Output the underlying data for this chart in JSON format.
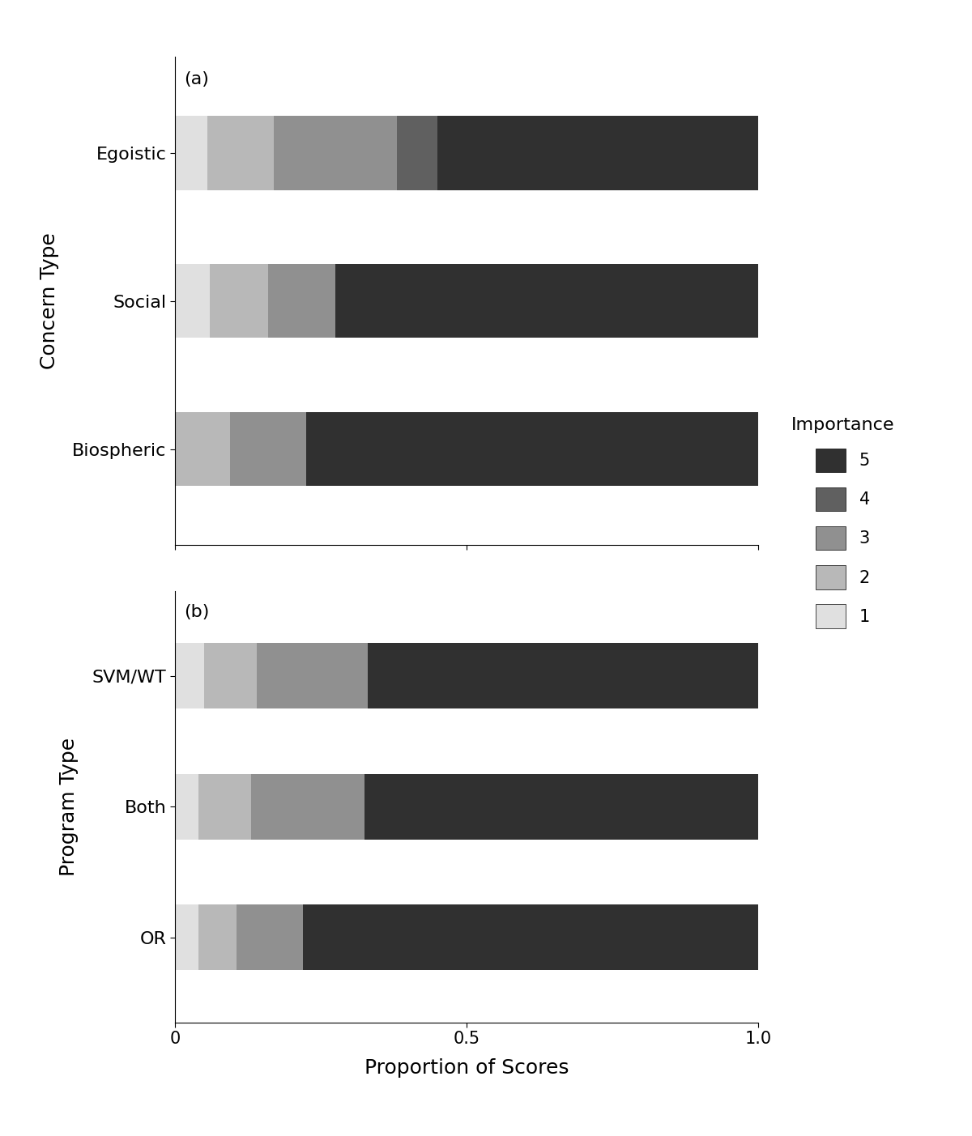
{
  "panel_a": {
    "label": "(a)",
    "ylabel": "Concern Type",
    "categories": [
      "Biospheric",
      "Social",
      "Egoistic"
    ],
    "data": {
      "Egoistic": [
        0.055,
        0.115,
        0.21,
        0.07,
        0.55
      ],
      "Social": [
        0.06,
        0.1,
        0.115,
        0.0,
        0.725
      ],
      "Biospheric": [
        0.0,
        0.095,
        0.13,
        0.0,
        0.775
      ]
    }
  },
  "panel_b": {
    "label": "(b)",
    "ylabel": "Program Type",
    "categories": [
      "OR",
      "Both",
      "SVM/WT"
    ],
    "data": {
      "SVM/WT": [
        0.05,
        0.09,
        0.19,
        0.0,
        0.67
      ],
      "Both": [
        0.04,
        0.09,
        0.195,
        0.0,
        0.675
      ],
      "OR": [
        0.04,
        0.065,
        0.115,
        0.0,
        0.78
      ]
    }
  },
  "importance_labels": [
    "1",
    "2",
    "3",
    "4",
    "5"
  ],
  "colors": [
    "#e0e0e0",
    "#b8b8b8",
    "#909090",
    "#606060",
    "#303030"
  ],
  "xlabel": "Proportion of Scores",
  "bar_height": 0.5,
  "figsize": [
    12.0,
    14.03
  ],
  "dpi": 100,
  "xticks": [
    0,
    0.5,
    1.0
  ],
  "xticklabels": [
    "0",
    "0.5",
    "1.0"
  ]
}
